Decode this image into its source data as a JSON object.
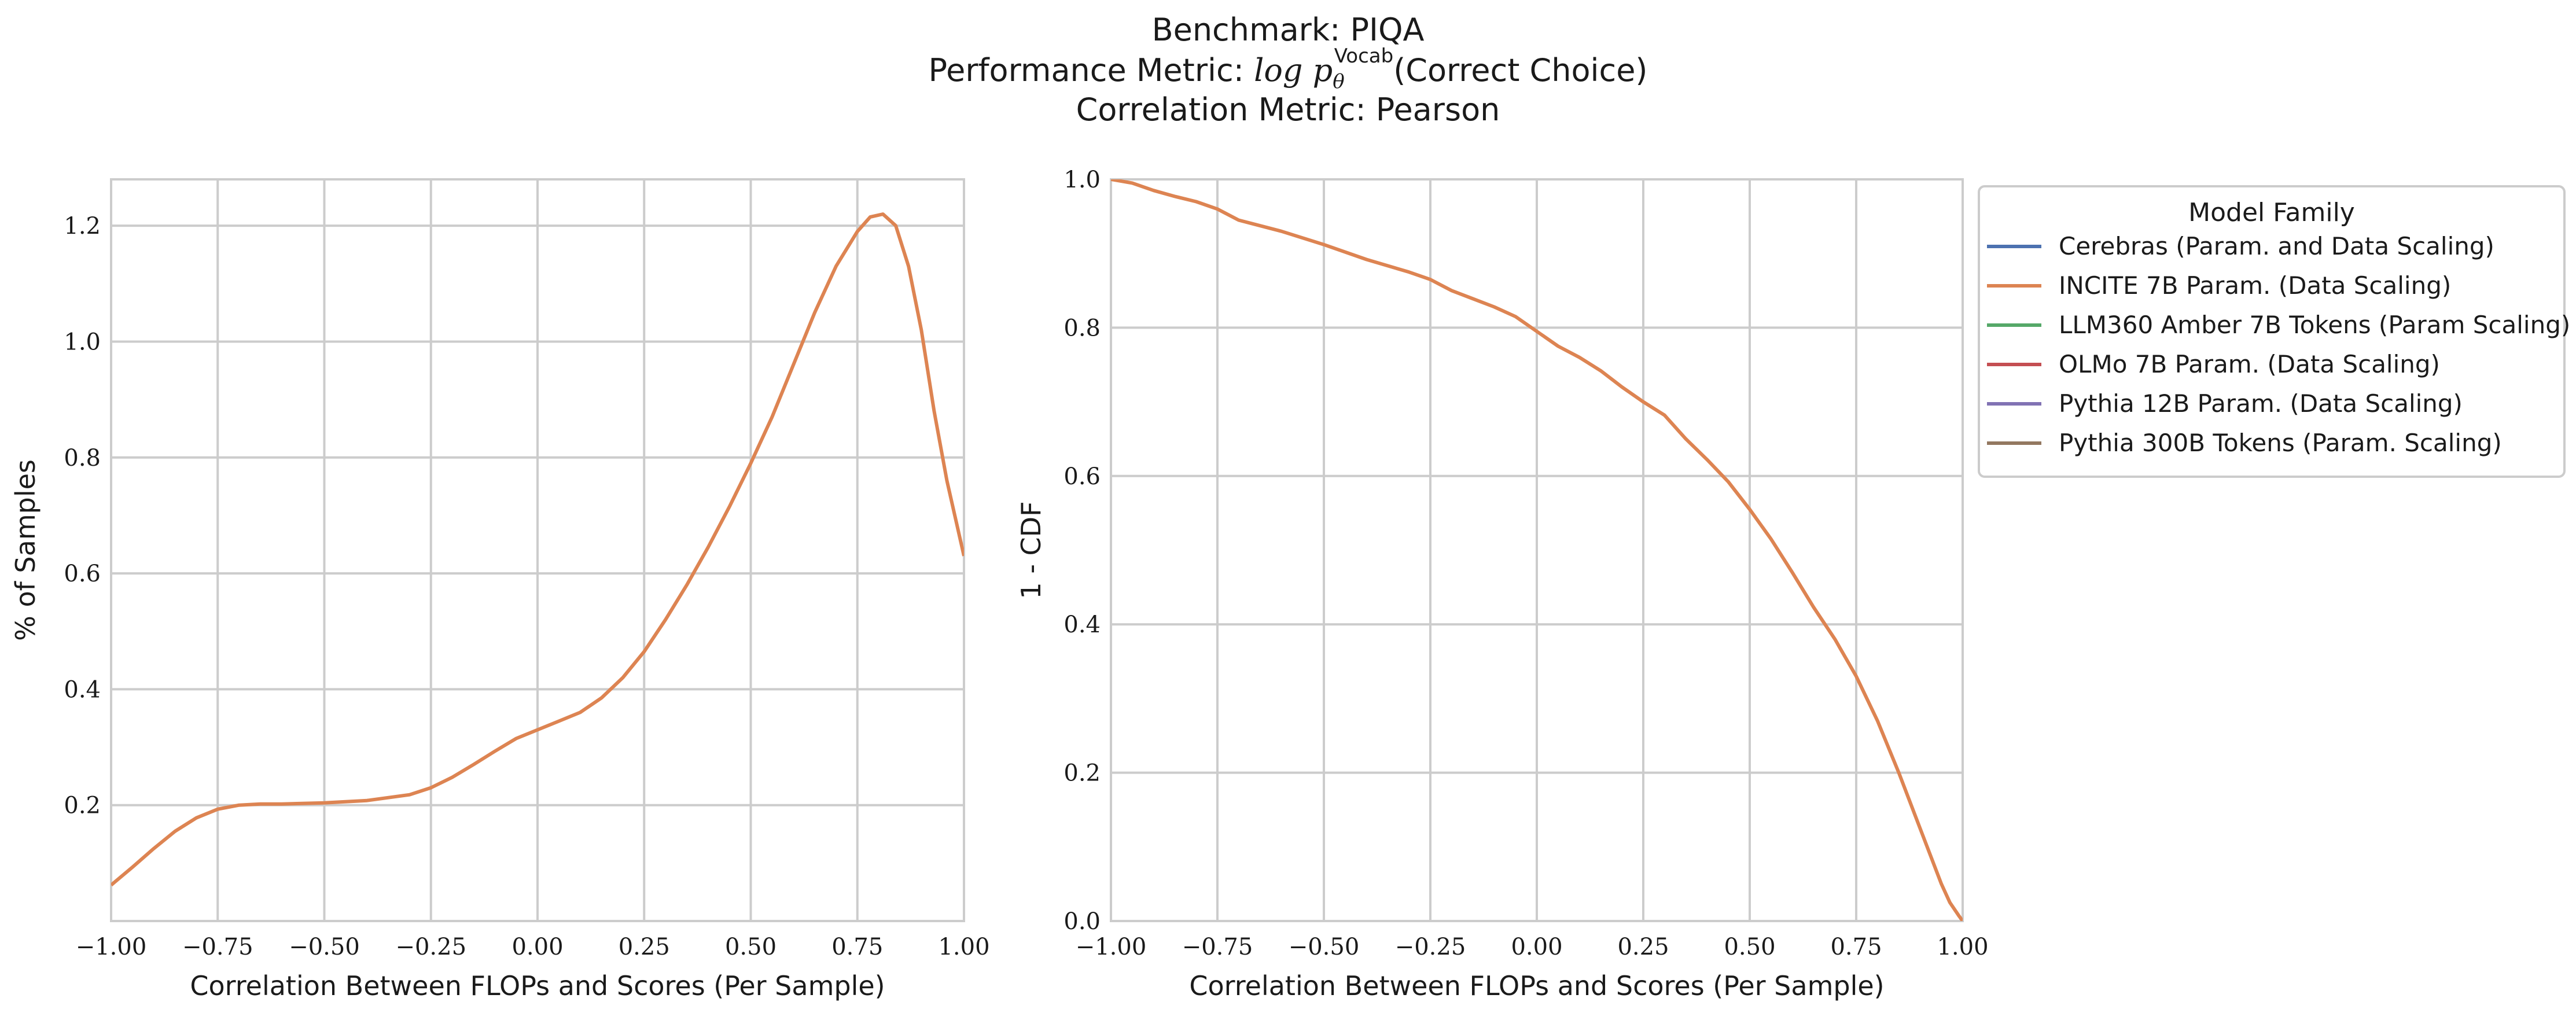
{
  "title": {
    "line1": "Benchmark: PIQA",
    "line2_prefix": "Performance Metric: ",
    "line2_math_log": "log",
    "line2_math_p": "p",
    "line2_math_theta": "θ",
    "line2_math_sup": "Vocab",
    "line2_suffix": "(Correct Choice)",
    "line3": "Correlation Metric: Pearson"
  },
  "legend": {
    "title": "Model Family",
    "items": [
      {
        "label": "Cerebras (Param. and Data Scaling)",
        "color": "#4c72b0"
      },
      {
        "label": "INCITE 7B Param. (Data Scaling)",
        "color": "#dd8452"
      },
      {
        "label": "LLM360 Amber 7B Tokens (Param Scaling)",
        "color": "#55a868"
      },
      {
        "label": "OLMo 7B Param. (Data Scaling)",
        "color": "#c44e52"
      },
      {
        "label": "Pythia 12B Param. (Data Scaling)",
        "color": "#8172b3"
      },
      {
        "label": "Pythia 300B Tokens (Param. Scaling)",
        "color": "#937860"
      }
    ]
  },
  "chart_data": [
    {
      "type": "line",
      "title": "",
      "xlabel": "Correlation Between FLOPs and Scores (Per Sample)",
      "ylabel": "% of Samples",
      "xlim": [
        -1.0,
        1.0
      ],
      "ylim": [
        0.0,
        1.28
      ],
      "xticks": [
        "−1.00",
        "−0.75",
        "−0.50",
        "−0.25",
        "0.00",
        "0.25",
        "0.50",
        "0.75",
        "1.00"
      ],
      "xtick_values": [
        -1.0,
        -0.75,
        -0.5,
        -0.25,
        0.0,
        0.25,
        0.5,
        0.75,
        1.0
      ],
      "yticks": [
        "0.2",
        "0.4",
        "0.6",
        "0.8",
        "1.0",
        "1.2"
      ],
      "ytick_values": [
        0.2,
        0.4,
        0.6,
        0.8,
        1.0,
        1.2
      ],
      "grid": true,
      "series": [
        {
          "name": "INCITE 7B Param. (Data Scaling)",
          "color": "#dd8452",
          "x": [
            -1.0,
            -0.95,
            -0.9,
            -0.85,
            -0.8,
            -0.75,
            -0.7,
            -0.65,
            -0.6,
            -0.5,
            -0.4,
            -0.3,
            -0.25,
            -0.2,
            -0.15,
            -0.1,
            -0.05,
            0.0,
            0.05,
            0.1,
            0.15,
            0.2,
            0.25,
            0.3,
            0.35,
            0.4,
            0.45,
            0.5,
            0.55,
            0.6,
            0.65,
            0.7,
            0.75,
            0.78,
            0.81,
            0.84,
            0.87,
            0.9,
            0.93,
            0.96,
            1.0
          ],
          "y": [
            0.062,
            0.093,
            0.125,
            0.155,
            0.178,
            0.193,
            0.2,
            0.202,
            0.202,
            0.204,
            0.208,
            0.218,
            0.23,
            0.248,
            0.27,
            0.293,
            0.315,
            0.33,
            0.345,
            0.36,
            0.385,
            0.42,
            0.465,
            0.52,
            0.58,
            0.645,
            0.715,
            0.79,
            0.87,
            0.96,
            1.05,
            1.13,
            1.19,
            1.215,
            1.22,
            1.2,
            1.13,
            1.02,
            0.88,
            0.76,
            0.63
          ]
        }
      ]
    },
    {
      "type": "line",
      "title": "",
      "xlabel": "Correlation Between FLOPs and Scores (Per Sample)",
      "ylabel": "1 - CDF",
      "xlim": [
        -1.0,
        1.0
      ],
      "ylim": [
        0.0,
        1.0
      ],
      "xticks": [
        "−1.00",
        "−0.75",
        "−0.50",
        "−0.25",
        "0.00",
        "0.25",
        "0.50",
        "0.75",
        "1.00"
      ],
      "xtick_values": [
        -1.0,
        -0.75,
        -0.5,
        -0.25,
        0.0,
        0.25,
        0.5,
        0.75,
        1.0
      ],
      "yticks": [
        "0.0",
        "0.2",
        "0.4",
        "0.6",
        "0.8",
        "1.0"
      ],
      "ytick_values": [
        0.0,
        0.2,
        0.4,
        0.6,
        0.8,
        1.0
      ],
      "grid": true,
      "series": [
        {
          "name": "INCITE 7B Param. (Data Scaling)",
          "color": "#dd8452",
          "x": [
            -1.0,
            -0.95,
            -0.9,
            -0.85,
            -0.8,
            -0.75,
            -0.7,
            -0.6,
            -0.5,
            -0.4,
            -0.3,
            -0.25,
            -0.2,
            -0.1,
            -0.05,
            0.0,
            0.05,
            0.1,
            0.15,
            0.2,
            0.25,
            0.3,
            0.35,
            0.4,
            0.45,
            0.5,
            0.55,
            0.6,
            0.65,
            0.7,
            0.75,
            0.8,
            0.85,
            0.9,
            0.95,
            0.97,
            0.99,
            1.0
          ],
          "y": [
            1.0,
            0.995,
            0.985,
            0.977,
            0.97,
            0.96,
            0.945,
            0.93,
            0.912,
            0.892,
            0.875,
            0.865,
            0.85,
            0.828,
            0.815,
            0.795,
            0.775,
            0.76,
            0.742,
            0.72,
            0.7,
            0.682,
            0.65,
            0.622,
            0.592,
            0.555,
            0.515,
            0.47,
            0.423,
            0.38,
            0.33,
            0.27,
            0.2,
            0.125,
            0.05,
            0.025,
            0.008,
            0.0
          ]
        }
      ]
    }
  ]
}
